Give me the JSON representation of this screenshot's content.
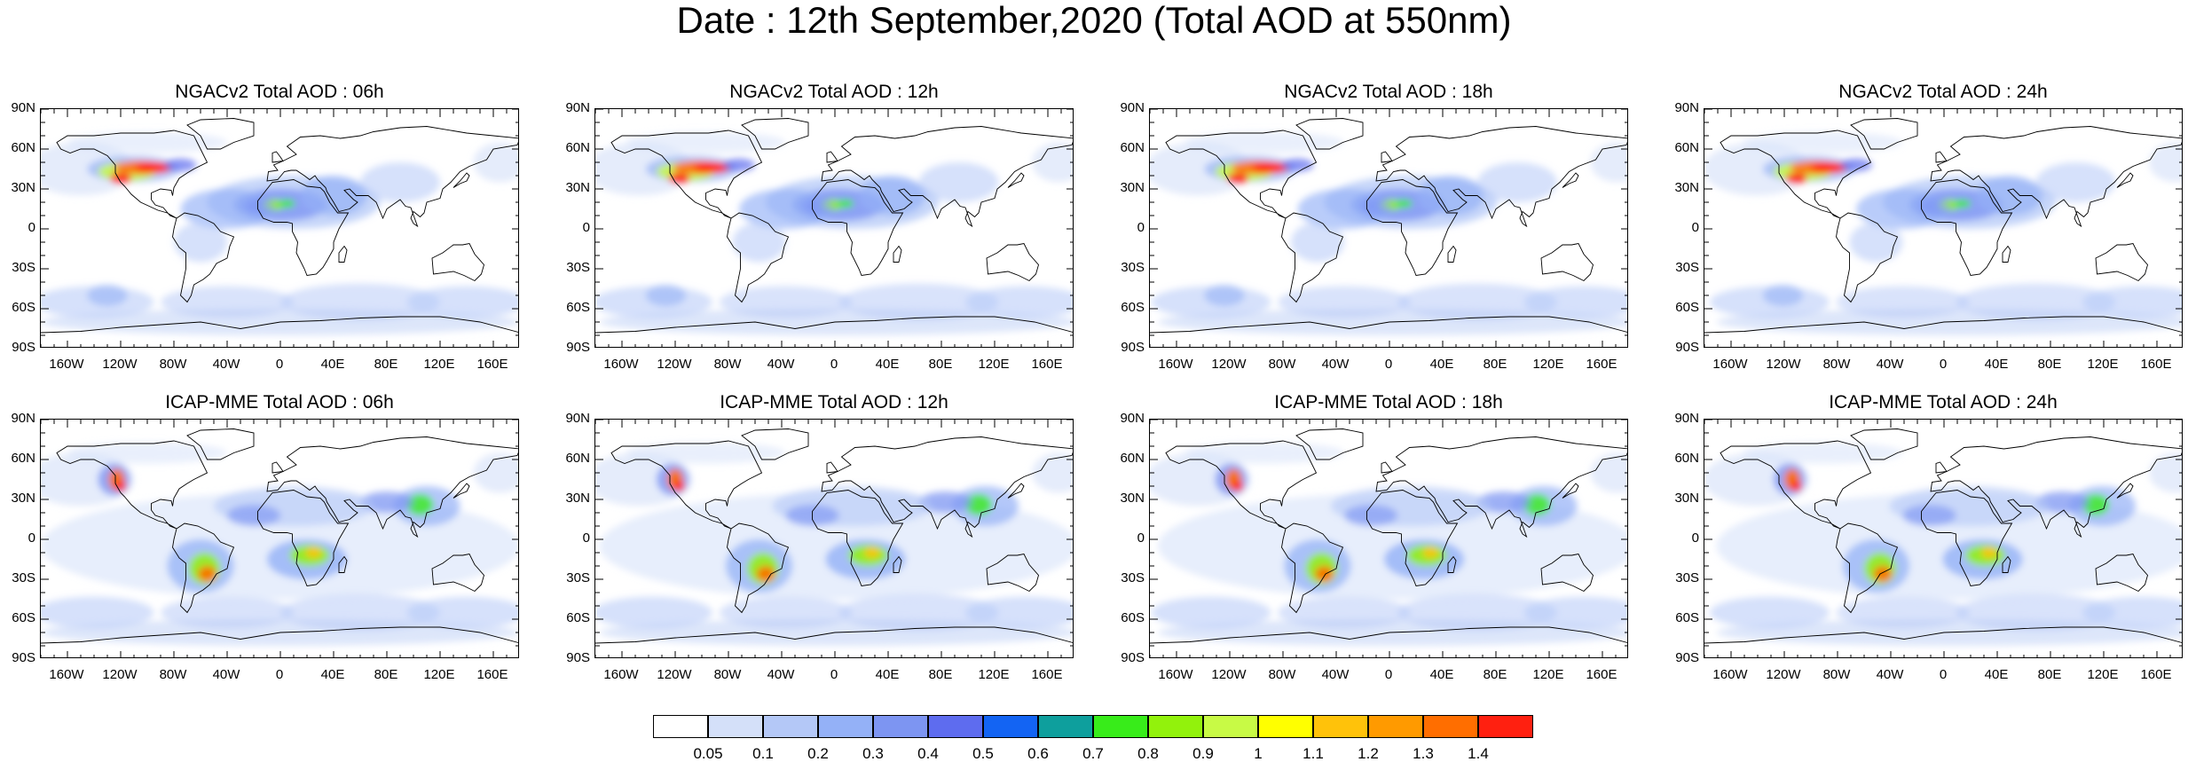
{
  "title": "Date : 12th September,2020 (Total AOD at 550nm)",
  "lat_ticks": [
    "90N",
    "60N",
    "30N",
    "0",
    "30S",
    "60S",
    "90S"
  ],
  "lon_ticks": [
    "160W",
    "120W",
    "80W",
    "40W",
    "0",
    "40E",
    "80E",
    "120E",
    "160E"
  ],
  "panels": [
    {
      "title": "NGACv2 Total AOD : 06h",
      "model": "NGACv2",
      "hour": "06h"
    },
    {
      "title": "NGACv2 Total AOD : 12h",
      "model": "NGACv2",
      "hour": "12h"
    },
    {
      "title": "NGACv2 Total AOD : 18h",
      "model": "NGACv2",
      "hour": "18h"
    },
    {
      "title": "NGACv2 Total AOD : 24h",
      "model": "NGACv2",
      "hour": "24h"
    },
    {
      "title": "ICAP-MME Total AOD : 06h",
      "model": "ICAP-MME",
      "hour": "06h"
    },
    {
      "title": "ICAP-MME Total AOD : 12h",
      "model": "ICAP-MME",
      "hour": "12h"
    },
    {
      "title": "ICAP-MME Total AOD : 18h",
      "model": "ICAP-MME",
      "hour": "18h"
    },
    {
      "title": "ICAP-MME Total AOD : 24h",
      "model": "ICAP-MME",
      "hour": "24h"
    }
  ],
  "colorbar": {
    "labels": [
      "0.05",
      "0.1",
      "0.2",
      "0.3",
      "0.4",
      "0.5",
      "0.6",
      "0.7",
      "0.8",
      "0.9",
      "1",
      "1.1",
      "1.2",
      "1.3",
      "1.4"
    ],
    "colors": [
      "#ffffff",
      "#d4e0f9",
      "#b4c8f7",
      "#94b1f7",
      "#7d95f2",
      "#5e6cef",
      "#1364f3",
      "#0e9f9d",
      "#38ec1a",
      "#92f20c",
      "#c8fa45",
      "#ffff00",
      "#ffc20a",
      "#ff9a00",
      "#ff6e00",
      "#ff2010"
    ]
  }
}
